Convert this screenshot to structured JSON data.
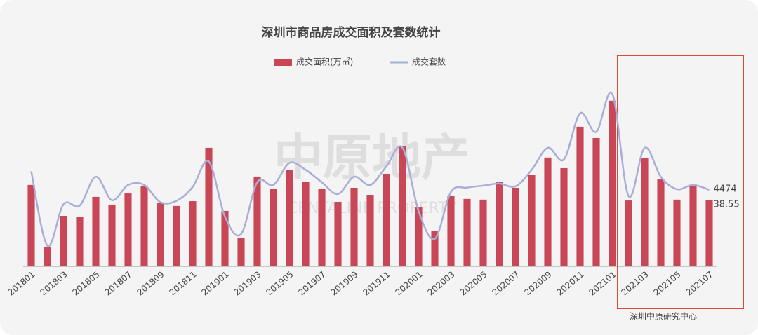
{
  "chart_data": {
    "type": "bar",
    "title": "深圳市商品房成交面积及套数统计",
    "source": "深圳中原研究中心",
    "watermark": "中原地产",
    "watermark_en": "CENTALINE PROPERTY",
    "categories": [
      "201801",
      null,
      "201803",
      null,
      "201805",
      null,
      "201807",
      null,
      "201809",
      null,
      "201811",
      null,
      "201901",
      null,
      "201903",
      null,
      "201905",
      null,
      "201907",
      null,
      "201909",
      null,
      "201911",
      null,
      "202001",
      null,
      "202003",
      null,
      "202005",
      null,
      "202007",
      null,
      "202009",
      null,
      "202011",
      null,
      "202101",
      null,
      "202103",
      null,
      "202105",
      null,
      "202107"
    ],
    "ylim": [
      0,
      100
    ],
    "y2lim": [
      0,
      10000
    ],
    "series": [
      {
        "name": "成交面积(万㎡)",
        "type": "bar",
        "color": "#c94657",
        "values": [
          47.6,
          11.1,
          29.5,
          29.1,
          40.6,
          36.1,
          42.6,
          46.7,
          37.3,
          35.3,
          38.1,
          69.3,
          32.4,
          16.4,
          52.5,
          45.1,
          56.2,
          49.2,
          45.1,
          37.7,
          45.9,
          41.8,
          54.1,
          70.5,
          34.4,
          20.5,
          41.0,
          39.4,
          39.0,
          49.2,
          45.9,
          53.3,
          63.6,
          57.4,
          81.6,
          75.0,
          96.8,
          38.5,
          63.1,
          50.8,
          39.0,
          47.6,
          38.55
        ]
      },
      {
        "name": "成交套数",
        "type": "line",
        "axis": "y2",
        "color": "#a9aed8",
        "values": [
          5560,
          1210,
          3630,
          3550,
          5240,
          3870,
          4760,
          4760,
          3750,
          3830,
          4640,
          6130,
          2900,
          1890,
          4920,
          4760,
          6050,
          5640,
          4920,
          4230,
          5240,
          4760,
          5840,
          6930,
          3220,
          1610,
          4350,
          4600,
          4720,
          4840,
          4680,
          5640,
          6930,
          6250,
          8950,
          7860,
          10080,
          4110,
          6930,
          5240,
          4510,
          4760,
          4474
        ]
      }
    ]
  }
}
